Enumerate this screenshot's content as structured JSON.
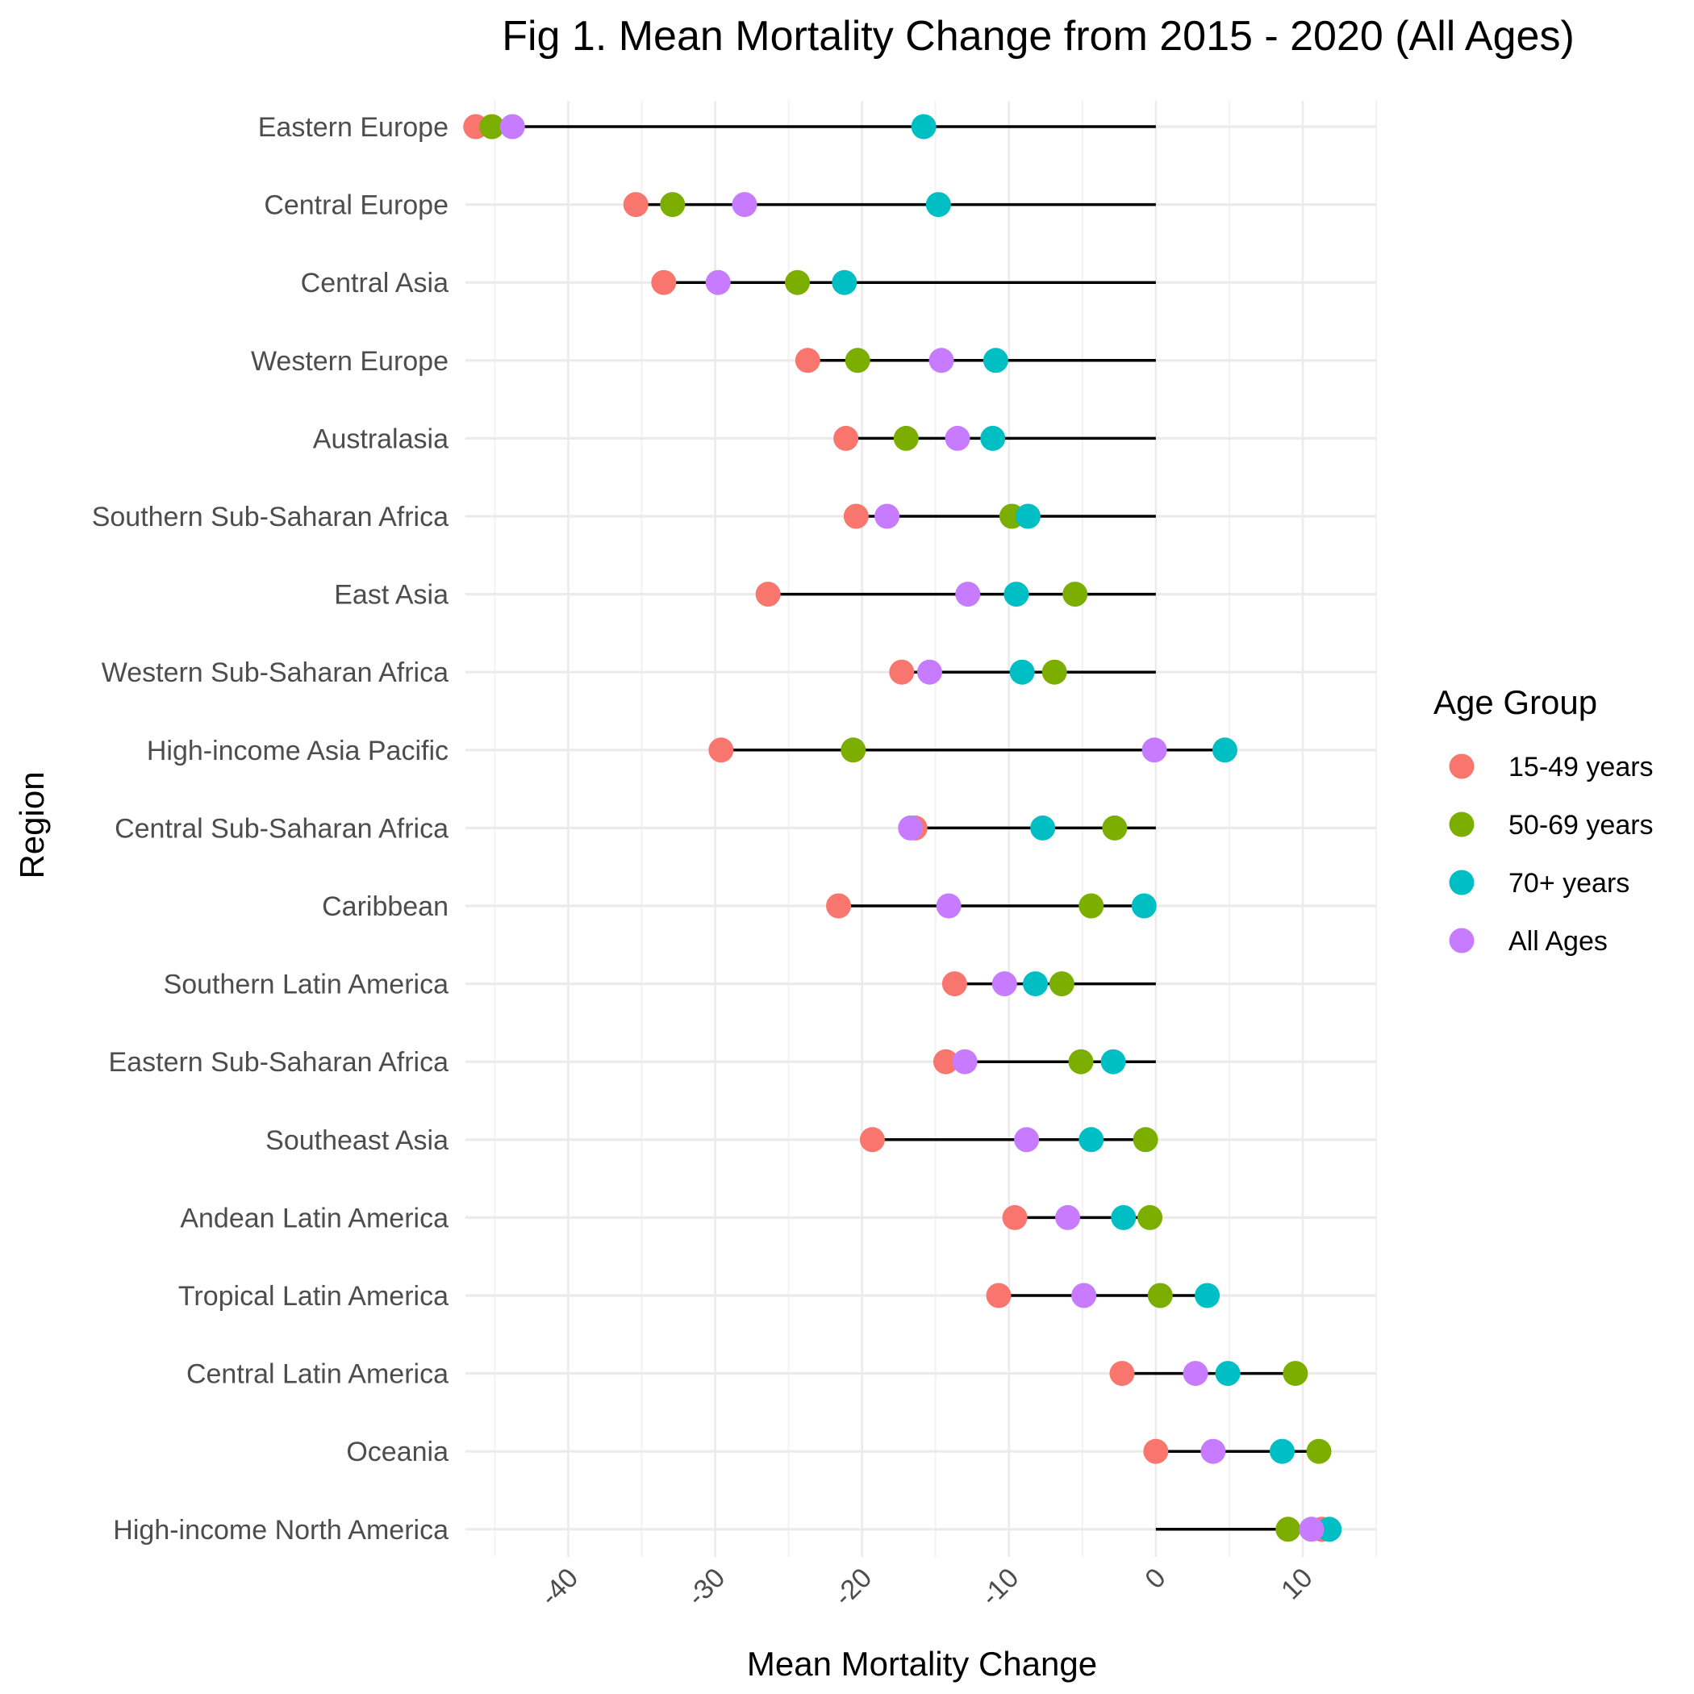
{
  "chart_data": {
    "type": "scatter",
    "title": "Fig 1. Mean Mortality Change from 2015 - 2020 (All Ages)",
    "xlabel": "Mean Mortality Change",
    "ylabel": "Region",
    "xlim": [
      -47,
      15
    ],
    "x_ticks": [
      -40,
      -30,
      -20,
      -10,
      0,
      10
    ],
    "grid": true,
    "legend_title": "Age Group",
    "legend_position": "right",
    "categories": [
      "Eastern Europe",
      "Central Europe",
      "Central Asia",
      "Western Europe",
      "Australasia",
      "Southern Sub-Saharan Africa",
      "East Asia",
      "Western Sub-Saharan Africa",
      "High-income Asia Pacific",
      "Central Sub-Saharan Africa",
      "Caribbean",
      "Southern Latin America",
      "Eastern Sub-Saharan Africa",
      "Southeast Asia",
      "Andean Latin America",
      "Tropical Latin America",
      "Central Latin America",
      "Oceania",
      "High-income North America"
    ],
    "series": [
      {
        "name": "15-49 years",
        "color": "#F8766D",
        "values": [
          -46.3,
          -35.4,
          -33.5,
          -23.7,
          -21.1,
          -20.4,
          -26.4,
          -17.3,
          -29.6,
          -16.4,
          -21.6,
          -13.7,
          -14.3,
          -19.3,
          -9.6,
          -10.7,
          -2.3,
          0.0,
          11.3
        ]
      },
      {
        "name": "50-69 years",
        "color": "#7CAE00",
        "values": [
          -45.2,
          -32.9,
          -24.4,
          -20.3,
          -17.0,
          -9.8,
          -5.5,
          -6.9,
          -20.6,
          -2.8,
          -4.4,
          -6.4,
          -5.1,
          -0.7,
          -0.4,
          0.3,
          9.5,
          11.1,
          9.0
        ]
      },
      {
        "name": "70+ years",
        "color": "#00BFC4",
        "values": [
          -15.8,
          -14.8,
          -21.2,
          -10.9,
          -11.1,
          -8.7,
          -9.5,
          -9.1,
          4.7,
          -7.7,
          -0.8,
          -8.2,
          -2.9,
          -4.4,
          -2.2,
          3.5,
          4.9,
          8.6,
          11.8
        ]
      },
      {
        "name": "All Ages",
        "color": "#C77CFF",
        "values": [
          -43.8,
          -28.0,
          -29.8,
          -14.6,
          -13.5,
          -18.3,
          -12.8,
          -15.4,
          -0.1,
          -16.7,
          -14.1,
          -10.3,
          -13.0,
          -8.8,
          -6.0,
          -4.9,
          2.7,
          3.9,
          10.6
        ]
      }
    ],
    "segments": [
      {
        "from": -46.3,
        "to": 0
      },
      {
        "from": -35.4,
        "to": 0
      },
      {
        "from": -33.5,
        "to": 0
      },
      {
        "from": -23.7,
        "to": 0
      },
      {
        "from": -21.1,
        "to": 0
      },
      {
        "from": -20.4,
        "to": 0
      },
      {
        "from": -26.4,
        "to": 0
      },
      {
        "from": -17.3,
        "to": 0
      },
      {
        "from": -29.6,
        "to": 4.7
      },
      {
        "from": -16.4,
        "to": 0
      },
      {
        "from": -21.6,
        "to": 0
      },
      {
        "from": -13.7,
        "to": 0
      },
      {
        "from": -14.3,
        "to": 0
      },
      {
        "from": -19.3,
        "to": 0
      },
      {
        "from": -9.6,
        "to": -0.4
      },
      {
        "from": -10.7,
        "to": 3.5
      },
      {
        "from": -2.3,
        "to": 9.5
      },
      {
        "from": 0.0,
        "to": 11.1
      },
      {
        "from": 0.0,
        "to": 11.8
      }
    ]
  }
}
